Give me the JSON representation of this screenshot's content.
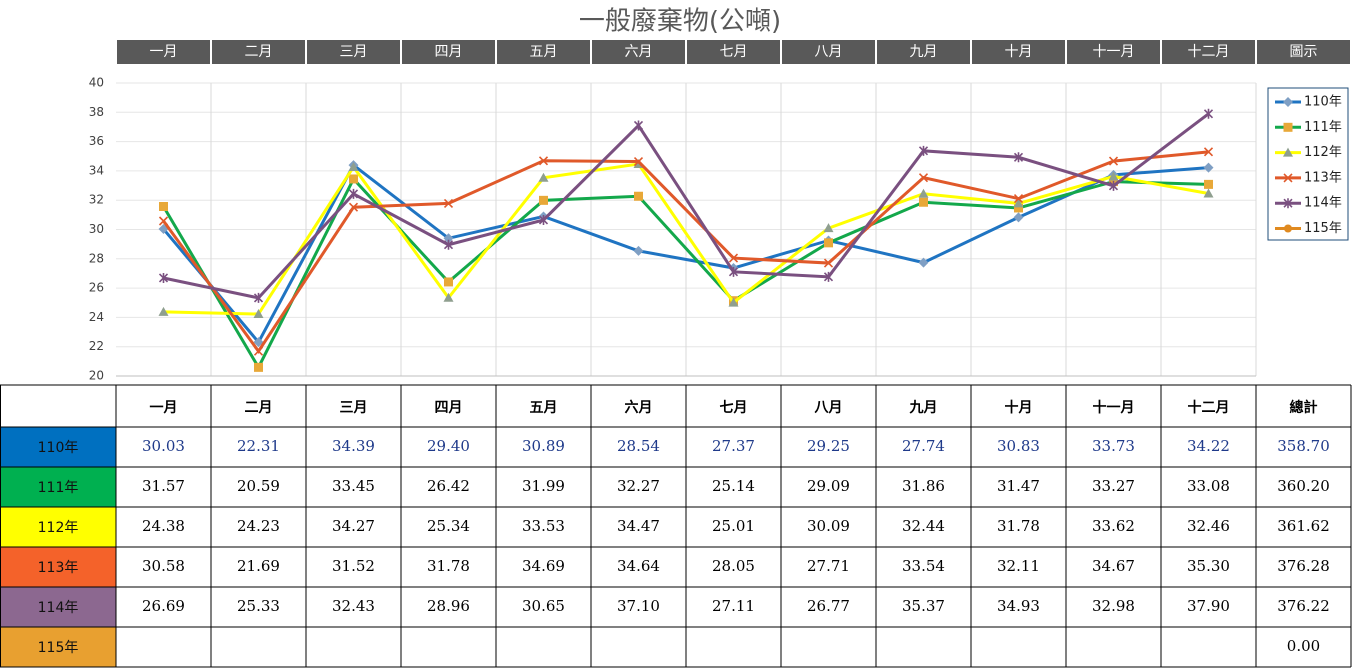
{
  "chart_data": {
    "type": "line",
    "title": "一般廢棄物(公噸)",
    "categories": [
      "一月",
      "二月",
      "三月",
      "四月",
      "五月",
      "六月",
      "七月",
      "八月",
      "九月",
      "十月",
      "十一月",
      "十二月"
    ],
    "legend_title": "圖示",
    "ylim": [
      20,
      40
    ],
    "yticks": [
      20,
      22,
      24,
      26,
      28,
      30,
      32,
      34,
      36,
      38,
      40
    ],
    "grid": true,
    "series": [
      {
        "name": "110年",
        "color": "#1f74c2",
        "marker": "diamond",
        "marker_color": "#7f9fc4",
        "row_color": "#0070c0",
        "values": [
          30.03,
          22.31,
          34.39,
          29.4,
          30.89,
          28.54,
          27.37,
          29.25,
          27.74,
          30.83,
          33.73,
          34.22
        ],
        "value_labels": [
          "30.03",
          "22.31",
          "34.39",
          "29.40",
          "30.89",
          "28.54",
          "27.37",
          "29.25",
          "27.74",
          "30.83",
          "33.73",
          "34.22"
        ],
        "total": "358.70"
      },
      {
        "name": "111年",
        "color": "#13a84b",
        "marker": "square",
        "marker_color": "#e8a838",
        "row_color": "#00b050",
        "values": [
          31.57,
          20.59,
          33.45,
          26.42,
          31.99,
          32.27,
          25.14,
          29.09,
          31.86,
          31.47,
          33.27,
          33.08
        ],
        "value_labels": [
          "31.57",
          "20.59",
          "33.45",
          "26.42",
          "31.99",
          "32.27",
          "25.14",
          "29.09",
          "31.86",
          "31.47",
          "33.27",
          "33.08"
        ],
        "total": "360.20"
      },
      {
        "name": "112年",
        "color": "#ffff00",
        "marker": "triangle",
        "marker_color": "#8f9f8f",
        "row_color": "#ffff00",
        "values": [
          24.38,
          24.23,
          34.27,
          25.34,
          33.53,
          34.47,
          25.01,
          30.09,
          32.44,
          31.78,
          33.62,
          32.46
        ],
        "value_labels": [
          "24.38",
          "24.23",
          "34.27",
          "25.34",
          "33.53",
          "34.47",
          "25.01",
          "30.09",
          "32.44",
          "31.78",
          "33.62",
          "32.46"
        ],
        "total": "361.62"
      },
      {
        "name": "113年",
        "color": "#e0592a",
        "marker": "x",
        "marker_color": "#e0592a",
        "row_color": "#f4622a",
        "values": [
          30.58,
          21.69,
          31.52,
          31.78,
          34.69,
          34.64,
          28.05,
          27.71,
          33.54,
          32.11,
          34.67,
          35.3
        ],
        "value_labels": [
          "30.58",
          "21.69",
          "31.52",
          "31.78",
          "34.69",
          "34.64",
          "28.05",
          "27.71",
          "33.54",
          "32.11",
          "34.67",
          "35.30"
        ],
        "total": "376.28"
      },
      {
        "name": "114年",
        "color": "#7a5080",
        "marker": "star",
        "marker_color": "#7a5080",
        "row_color": "#8c6890",
        "values": [
          26.69,
          25.33,
          32.43,
          28.96,
          30.65,
          37.1,
          27.11,
          26.77,
          35.37,
          34.93,
          32.98,
          37.9
        ],
        "value_labels": [
          "26.69",
          "25.33",
          "32.43",
          "28.96",
          "30.65",
          "37.10",
          "27.11",
          "26.77",
          "35.37",
          "34.93",
          "32.98",
          "37.90"
        ],
        "total": "376.22"
      },
      {
        "name": "115年",
        "color": "#e08a20",
        "marker": "circle",
        "marker_color": "#e08a20",
        "row_color": "#e8a030",
        "values": [
          null,
          null,
          null,
          null,
          null,
          null,
          null,
          null,
          null,
          null,
          null,
          null
        ],
        "value_labels": [
          null,
          null,
          null,
          null,
          null,
          null,
          null,
          null,
          null,
          null,
          null,
          null
        ],
        "total": "0.00"
      }
    ],
    "total_label": "總計"
  }
}
